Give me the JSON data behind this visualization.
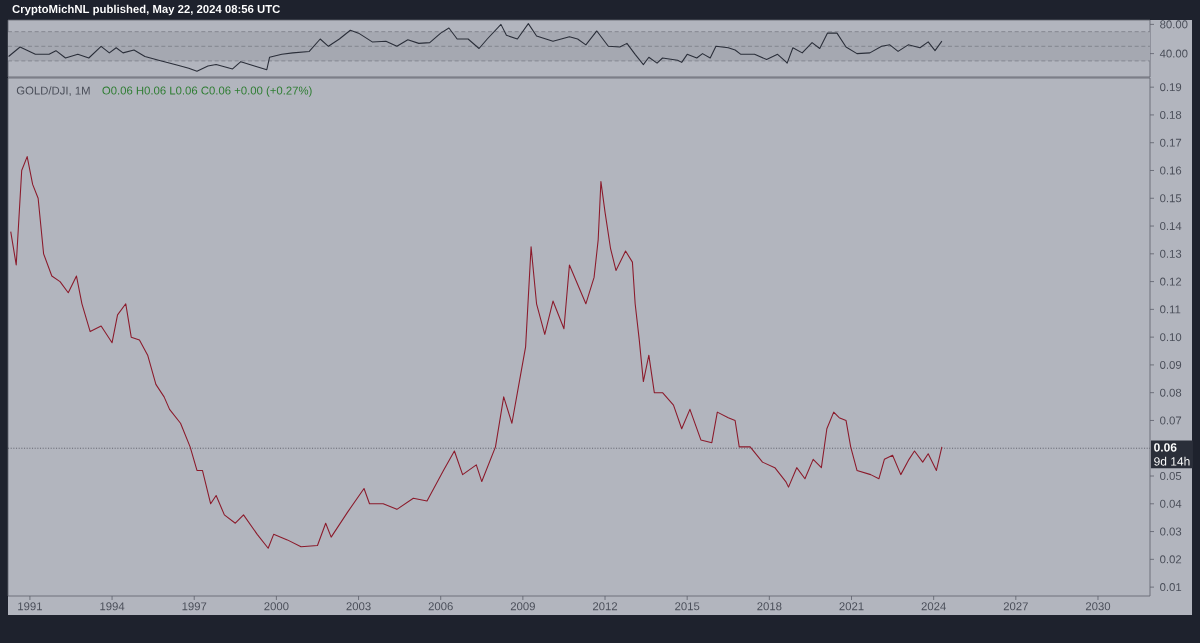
{
  "chart_data": [
    {
      "type": "line",
      "color": "#2a2e39",
      "line_style": "solid",
      "tick_labels": "y",
      "annotations": [
        "CryptoMichNL published, May 22, 2024 08:56 UTC"
      ],
      "xlim": [
        1990.2,
        2031.9
      ],
      "ylim": [
        8,
        86
      ],
      "yticks": [
        {
          "value": 80,
          "label": "80.00"
        },
        {
          "value": 40,
          "label": "40.00"
        }
      ],
      "bands": [
        {
          "axis": "y",
          "from": 30,
          "to": 70,
          "color": "#a5a8b1"
        }
      ],
      "ref_lines": [
        {
          "axis": "y",
          "value": 70,
          "line_style": "dashed",
          "color": "#7b7e88"
        },
        {
          "axis": "y",
          "value": 50,
          "line_style": "dashed",
          "color": "#7b7e88"
        },
        {
          "axis": "y",
          "value": 30,
          "line_style": "dashed",
          "color": "#7b7e88"
        }
      ],
      "x": [
        1990.22,
        1990.64,
        1991.2,
        1991.7,
        1991.95,
        1992.3,
        1992.75,
        1993.15,
        1993.6,
        1993.9,
        1994.15,
        1994.4,
        1994.8,
        1995.2,
        1995.7,
        1996.4,
        1996.8,
        1997.1,
        1997.5,
        1997.8,
        1998.4,
        1998.7,
        1999.2,
        1999.65,
        1999.75,
        2000.2,
        2000.6,
        2001.2,
        2001.6,
        2001.9,
        2002.3,
        2002.7,
        2003.0,
        2003.5,
        2004.0,
        2004.4,
        2004.8,
        2005.2,
        2005.6,
        2006.0,
        2006.3,
        2006.6,
        2007.0,
        2007.4,
        2007.7,
        2008.2,
        2008.4,
        2008.8,
        2009.2,
        2009.5,
        2010.1,
        2010.7,
        2011.0,
        2011.3,
        2011.7,
        2012.12,
        2012.54,
        2012.8,
        2013.1,
        2013.4,
        2013.6,
        2013.9,
        2014.1,
        2014.65,
        2014.8,
        2015.0,
        2015.35,
        2015.56,
        2015.84,
        2016.05,
        2016.5,
        2016.75,
        2016.96,
        2017.46,
        2017.9,
        2018.3,
        2018.6,
        2018.65,
        2018.86,
        2019.2,
        2019.56,
        2019.84,
        2020.12,
        2020.47,
        2020.8,
        2021.2,
        2021.67,
        2022.1,
        2022.4,
        2022.7,
        2023.07,
        2023.5,
        2023.8,
        2024.05,
        2024.3
      ],
      "values": [
        36,
        49,
        39,
        39,
        44,
        34,
        39,
        34,
        50,
        41,
        48,
        41,
        45,
        36,
        31,
        24,
        20,
        16,
        23,
        25,
        19,
        29,
        23,
        18,
        35,
        39,
        41,
        43,
        60,
        50,
        60,
        72,
        68,
        56,
        57,
        50,
        59,
        54,
        55,
        68,
        75,
        60,
        60,
        47,
        60,
        80,
        65,
        60,
        81,
        64,
        57,
        63,
        60,
        52,
        71,
        50,
        49,
        54,
        39,
        25,
        35,
        27,
        34,
        31,
        28,
        39,
        34,
        40,
        34,
        50,
        48,
        45,
        39,
        39,
        32,
        39,
        29,
        27,
        48,
        41,
        55,
        47,
        68,
        68,
        49,
        40,
        41,
        50,
        52,
        43,
        52,
        48,
        56,
        44,
        57
      ]
    },
    {
      "type": "line",
      "color": "#8b1a2b",
      "line_style": "solid",
      "title": "GOLD/DJI, 1M",
      "subtitle": "O0.06 H0.06 L0.06 C0.06 +0.00 (+0.27%)",
      "annotations": [
        "9d 14h"
      ],
      "xlim": [
        1990.2,
        2031.9
      ],
      "ylim": [
        0.0068,
        0.1933
      ],
      "xticks": [
        1991,
        1994,
        1997,
        2000,
        2003,
        2006,
        2009,
        2012,
        2015,
        2018,
        2021,
        2024,
        2027,
        2030
      ],
      "yticks": [
        {
          "value": 0.01,
          "label": "0.01"
        },
        {
          "value": 0.02,
          "label": "0.02"
        },
        {
          "value": 0.03,
          "label": "0.03"
        },
        {
          "value": 0.04,
          "label": "0.04"
        },
        {
          "value": 0.05,
          "label": "0.05"
        },
        {
          "value": 0.07,
          "label": "0.07"
        },
        {
          "value": 0.08,
          "label": "0.08"
        },
        {
          "value": 0.09,
          "label": "0.09"
        },
        {
          "value": 0.1,
          "label": "0.10"
        },
        {
          "value": 0.11,
          "label": "0.11"
        },
        {
          "value": 0.12,
          "label": "0.12"
        },
        {
          "value": 0.13,
          "label": "0.13"
        },
        {
          "value": 0.14,
          "label": "0.14"
        },
        {
          "value": 0.15,
          "label": "0.15"
        },
        {
          "value": 0.16,
          "label": "0.16"
        },
        {
          "value": 0.17,
          "label": "0.17"
        },
        {
          "value": 0.18,
          "label": "0.18"
        },
        {
          "value": 0.19,
          "label": "0.19"
        }
      ],
      "ref_lines": [
        {
          "axis": "y",
          "value": 0.06,
          "label": "0.06",
          "line_style": "dotted",
          "color": "#50535e"
        }
      ],
      "x": [
        1990.3,
        1990.5,
        1990.7,
        1990.9,
        1991.1,
        1991.3,
        1991.5,
        1991.8,
        1992.1,
        1992.4,
        1992.7,
        1992.9,
        1993.2,
        1993.6,
        1994.0,
        1994.2,
        1994.5,
        1994.7,
        1995.0,
        1995.3,
        1995.6,
        1995.9,
        1996.1,
        1996.5,
        1996.85,
        1997.1,
        1997.3,
        1997.6,
        1997.8,
        1998.1,
        1998.5,
        1998.8,
        1999.3,
        1999.7,
        1999.9,
        2000.4,
        2000.9,
        2001.5,
        2001.8,
        2002.0,
        2002.6,
        2003.2,
        2003.4,
        2003.9,
        2004.4,
        2005.0,
        2005.5,
        2006.1,
        2006.5,
        2006.8,
        2007.3,
        2007.5,
        2008.0,
        2008.3,
        2008.6,
        2008.8,
        2009.1,
        2009.3,
        2009.5,
        2009.8,
        2010.1,
        2010.5,
        2010.7,
        2011.3,
        2011.6,
        2011.75,
        2011.85,
        2012.0,
        2012.2,
        2012.4,
        2012.75,
        2013.0,
        2013.1,
        2013.25,
        2013.4,
        2013.6,
        2013.8,
        2014.1,
        2014.5,
        2014.8,
        2015.1,
        2015.5,
        2015.9,
        2016.1,
        2016.5,
        2016.75,
        2016.9,
        2017.3,
        2017.75,
        2018.2,
        2018.6,
        2018.7,
        2019.0,
        2019.3,
        2019.6,
        2019.9,
        2020.1,
        2020.35,
        2020.55,
        2020.8,
        2020.97,
        2021.2,
        2021.7,
        2022.0,
        2022.2,
        2022.5,
        2022.8,
        2023.1,
        2023.3,
        2023.6,
        2023.8,
        2024.1,
        2024.3
      ],
      "values": [
        0.138,
        0.126,
        0.16,
        0.165,
        0.155,
        0.15,
        0.13,
        0.122,
        0.12,
        0.116,
        0.122,
        0.112,
        0.102,
        0.104,
        0.098,
        0.108,
        0.112,
        0.1,
        0.099,
        0.0935,
        0.083,
        0.0785,
        0.074,
        0.069,
        0.0605,
        0.052,
        0.052,
        0.04,
        0.043,
        0.036,
        0.033,
        0.036,
        0.029,
        0.024,
        0.029,
        0.027,
        0.0245,
        0.025,
        0.033,
        0.028,
        0.037,
        0.0455,
        0.04,
        0.04,
        0.038,
        0.042,
        0.041,
        0.052,
        0.059,
        0.0505,
        0.054,
        0.048,
        0.0605,
        0.0785,
        0.069,
        0.08,
        0.0965,
        0.1325,
        0.112,
        0.101,
        0.113,
        0.103,
        0.126,
        0.112,
        0.1215,
        0.135,
        0.156,
        0.145,
        0.132,
        0.124,
        0.131,
        0.127,
        0.112,
        0.099,
        0.084,
        0.0935,
        0.08,
        0.08,
        0.0755,
        0.067,
        0.074,
        0.063,
        0.062,
        0.073,
        0.071,
        0.07,
        0.0605,
        0.0605,
        0.055,
        0.053,
        0.048,
        0.046,
        0.053,
        0.049,
        0.056,
        0.053,
        0.067,
        0.073,
        0.071,
        0.07,
        0.0605,
        0.052,
        0.0505,
        0.049,
        0.056,
        0.0575,
        0.0505,
        0.056,
        0.059,
        0.055,
        0.058,
        0.052,
        0.0605
      ]
    }
  ]
}
